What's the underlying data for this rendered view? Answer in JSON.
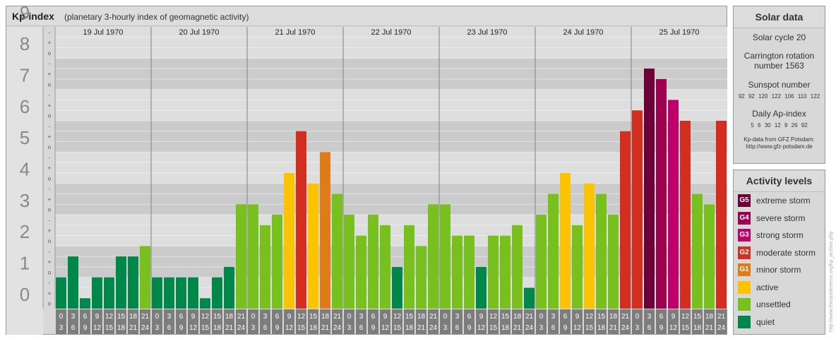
{
  "header": {
    "title": "Kp-index",
    "subtitle": "(planetary 3-hourly index of geomagnetic activity)"
  },
  "solar": {
    "heading": "Solar data",
    "cycle": "Solar cycle 20",
    "carrington_line1": "Carrington rotation",
    "carrington_line2": "number 1563",
    "sunspot_label": "Sunspot number",
    "sunspot_values": "92 92 120 122 106 110 122",
    "ap_label": "Daily Ap-index",
    "ap_values": "5 6 30 12 9 26 92",
    "credit_line1": "Kp-data from GFZ Potsdam:",
    "credit_line2": "http://www.gfz-potsdam.de"
  },
  "activity": {
    "heading": "Activity levels",
    "levels": [
      {
        "code": "G5",
        "label": "extreme storm",
        "color": "#6e0038"
      },
      {
        "code": "G4",
        "label": "severe storm",
        "color": "#9e0050"
      },
      {
        "code": "G3",
        "label": "strong storm",
        "color": "#c0006a"
      },
      {
        "code": "G2",
        "label": "moderate storm",
        "color": "#d42e20"
      },
      {
        "code": "G1",
        "label": "minor storm",
        "color": "#e07c18"
      },
      {
        "code": "",
        "label": "active",
        "color": "#fcc300"
      },
      {
        "code": "",
        "label": "unsettled",
        "color": "#78c01e"
      },
      {
        "code": "",
        "label": "quiet",
        "color": "#00884a"
      }
    ]
  },
  "watermark": "http://www.theusreference.org/kp_archive.php",
  "chart_data": {
    "type": "bar",
    "y_ticks": [
      "0",
      "1",
      "2",
      "3",
      "4",
      "5",
      "6",
      "7",
      "8",
      "9"
    ],
    "ylim": [
      0,
      9
    ],
    "minor_tick_labels": [
      "o",
      "+",
      "-"
    ],
    "days": [
      "19 Jul 1970",
      "20 Jul 1970",
      "21 Jul 1970",
      "22 Jul 1970",
      "23 Jul 1970",
      "24 Jul 1970",
      "25 Jul 1970"
    ],
    "interval_starts": [
      "0",
      "3",
      "6",
      "9",
      "12",
      "15",
      "18",
      "21"
    ],
    "interval_ends": [
      "3",
      "6",
      "9",
      "12",
      "15",
      "18",
      "21",
      "24"
    ],
    "values": [
      1.0,
      1.667,
      0.333,
      1.0,
      1.0,
      1.667,
      1.667,
      2.0,
      1.0,
      1.0,
      1.0,
      1.0,
      0.333,
      1.0,
      1.333,
      3.333,
      3.333,
      2.667,
      3.0,
      4.333,
      5.667,
      4.0,
      5.0,
      3.667,
      3.0,
      2.333,
      3.0,
      2.667,
      1.333,
      2.667,
      2.0,
      3.333,
      3.333,
      2.333,
      2.333,
      1.333,
      2.333,
      2.333,
      2.667,
      0.667,
      3.0,
      3.667,
      4.333,
      2.667,
      4.0,
      3.667,
      3.0,
      5.667,
      6.333,
      7.667,
      7.333,
      6.667,
      6.0,
      3.667,
      3.333,
      6.0
    ],
    "color_scale": [
      {
        "min_value": 0,
        "color": "#00884a"
      },
      {
        "min_value": 2.0,
        "color": "#78c01e"
      },
      {
        "min_value": 4.0,
        "color": "#fcc300"
      },
      {
        "min_value": 5.0,
        "color": "#e07c18"
      },
      {
        "min_value": 5.667,
        "color": "#d42e20"
      },
      {
        "min_value": 6.667,
        "color": "#c0006a"
      },
      {
        "min_value": 7.333,
        "color": "#9e0050"
      },
      {
        "min_value": 7.667,
        "color": "#6e0038"
      }
    ]
  }
}
